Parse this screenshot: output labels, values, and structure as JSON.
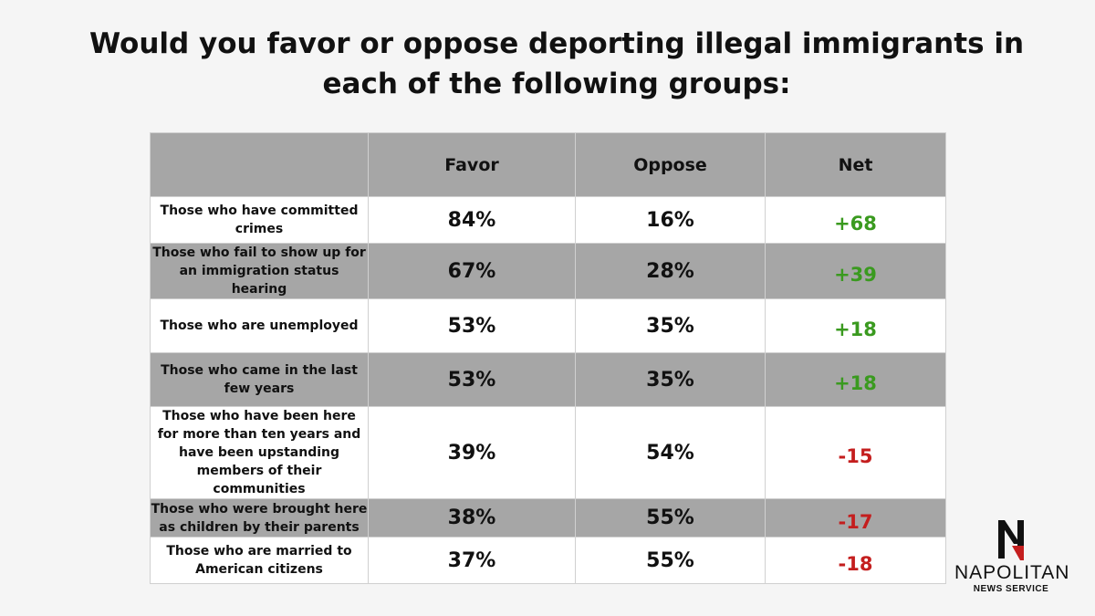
{
  "title": "Would you favor or oppose deporting illegal immigrants in each of the following groups:",
  "chart_data": {
    "type": "table",
    "columns": [
      "",
      "Favor",
      "Oppose",
      "Net"
    ],
    "rows": [
      {
        "group": "Those who have committed crimes",
        "favor": "84%",
        "oppose": "16%",
        "net": "+68"
      },
      {
        "group": "Those who fail to show up for an immigration status hearing",
        "favor": "67%",
        "oppose": "28%",
        "net": "+39"
      },
      {
        "group": "Those who are unemployed",
        "favor": "53%",
        "oppose": "35%",
        "net": "+18"
      },
      {
        "group": "Those who came in the last few years",
        "favor": "53%",
        "oppose": "35%",
        "net": "+18"
      },
      {
        "group": "Those who have been here for more than ten years and have been upstanding members of their communities",
        "favor": "39%",
        "oppose": "54%",
        "net": "-15"
      },
      {
        "group": "Those who were brought here as children by their parents",
        "favor": "38%",
        "oppose": "55%",
        "net": "-17"
      },
      {
        "group": "Those who are married to American citizens",
        "favor": "37%",
        "oppose": "55%",
        "net": "-18"
      }
    ]
  },
  "colors": {
    "positive": "#3a9a1f",
    "negative": "#c41e1e",
    "shaded_row": "#a6a6a6"
  },
  "logo": {
    "name": "NAPOLITAN",
    "subtitle": "NEWS SERVICE",
    "icon": "napolitan-n-logo-icon"
  }
}
